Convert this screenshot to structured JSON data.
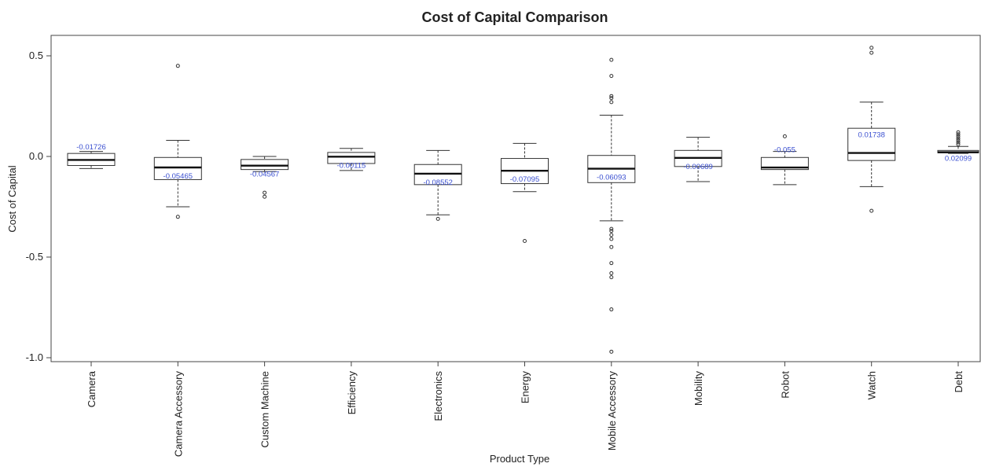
{
  "chart_data": {
    "type": "box",
    "title": "Cost of Capital Comparison",
    "xlabel": "Product Type",
    "ylabel": "Cost of Capital",
    "ylim": [
      -1.0,
      0.6
    ],
    "yticks": [
      {
        "value": 0.5,
        "label": "0.5"
      },
      {
        "value": 0.0,
        "label": "0.0"
      },
      {
        "value": -0.5,
        "label": "-0.5"
      },
      {
        "value": -1.0,
        "label": "-1.0"
      }
    ],
    "grid": false,
    "categories": [
      "Camera",
      "Camera Accessory",
      "Custom Machine",
      "Efficiency",
      "Electronics",
      "Energy",
      "Mobile Accessory",
      "Mobility",
      "Robot",
      "Watch",
      "Debt"
    ],
    "boxes": [
      {
        "name": "Camera",
        "lower_whisker": -0.06,
        "q1": -0.045,
        "median": -0.01726,
        "q3": 0.015,
        "upper_whisker": 0.025,
        "median_label": "-0.01726",
        "outliers": []
      },
      {
        "name": "Camera Accessory",
        "lower_whisker": -0.25,
        "q1": -0.115,
        "median": -0.05465,
        "q3": -0.005,
        "upper_whisker": 0.08,
        "median_label": "-0.05465",
        "outliers": [
          0.45,
          -0.3
        ]
      },
      {
        "name": "Custom Machine",
        "lower_whisker": -0.075,
        "q1": -0.065,
        "median": -0.04567,
        "q3": -0.015,
        "upper_whisker": 0.0,
        "median_label": "-0.04567",
        "outliers": [
          -0.18,
          -0.2
        ]
      },
      {
        "name": "Efficiency",
        "lower_whisker": -0.07,
        "q1": -0.035,
        "median": -0.00115,
        "q3": 0.02,
        "upper_whisker": 0.04,
        "median_label": "-0.00115",
        "outliers": []
      },
      {
        "name": "Electronics",
        "lower_whisker": -0.29,
        "q1": -0.14,
        "median": -0.08552,
        "q3": -0.04,
        "upper_whisker": 0.03,
        "median_label": "-0.08552",
        "outliers": [
          -0.31
        ]
      },
      {
        "name": "Energy",
        "lower_whisker": -0.175,
        "q1": -0.135,
        "median": -0.07095,
        "q3": -0.01,
        "upper_whisker": 0.065,
        "median_label": "-0.07095",
        "outliers": [
          -0.42
        ]
      },
      {
        "name": "Mobile Accessory",
        "lower_whisker": -0.32,
        "q1": -0.13,
        "median": -0.06093,
        "q3": 0.005,
        "upper_whisker": 0.205,
        "median_label": "-0.06093",
        "outliers": [
          0.48,
          0.4,
          0.3,
          0.29,
          0.27,
          -0.36,
          -0.37,
          -0.39,
          -0.41,
          -0.45,
          -0.53,
          -0.58,
          -0.6,
          -0.76,
          -0.97
        ]
      },
      {
        "name": "Mobility",
        "lower_whisker": -0.125,
        "q1": -0.05,
        "median": -0.00689,
        "q3": 0.03,
        "upper_whisker": 0.095,
        "median_label": "-0.00689",
        "outliers": []
      },
      {
        "name": "Robot",
        "lower_whisker": -0.14,
        "q1": -0.065,
        "median": -0.055,
        "q3": -0.005,
        "upper_whisker": 0.025,
        "median_label": "-0.055",
        "outliers": [
          0.1
        ]
      },
      {
        "name": "Watch",
        "lower_whisker": -0.15,
        "q1": -0.02,
        "median": 0.01738,
        "q3": 0.14,
        "upper_whisker": 0.27,
        "median_label": "0.01738",
        "outliers": [
          0.54,
          0.515,
          -0.27
        ]
      },
      {
        "name": "Debt",
        "lower_whisker": 0.015,
        "q1": 0.018,
        "median": 0.02099,
        "q3": 0.03,
        "upper_whisker": 0.05,
        "median_label": "0.02099",
        "outliers": [
          0.12,
          0.11,
          0.1,
          0.09,
          0.08,
          0.07,
          0.06
        ]
      }
    ]
  }
}
